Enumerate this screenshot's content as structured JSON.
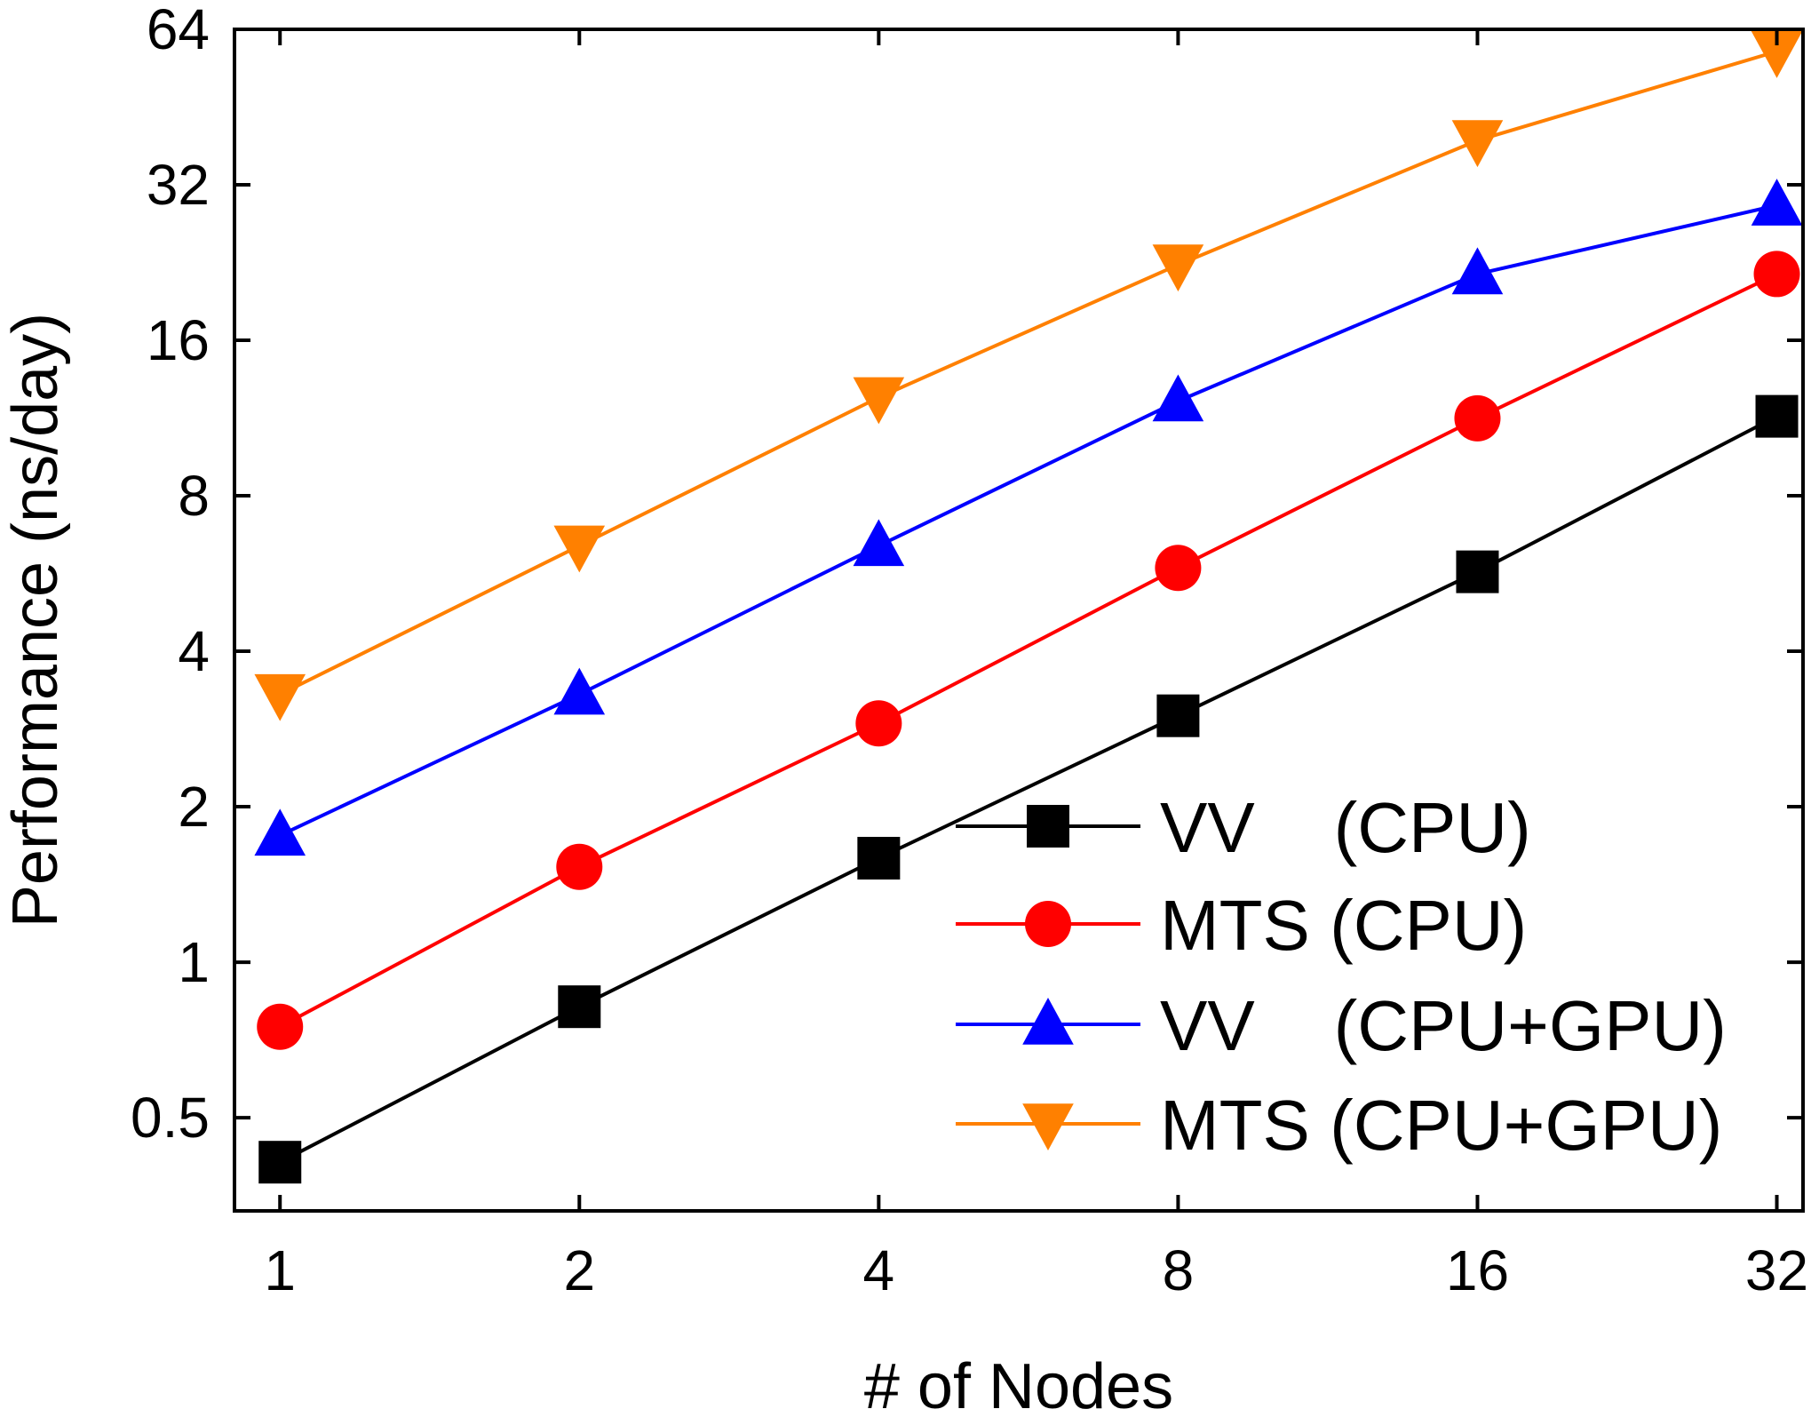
{
  "chart_data": {
    "type": "line",
    "xlabel": "# of Nodes",
    "ylabel": "Performance (ns/day)",
    "x_scale": "log2",
    "y_scale": "log2",
    "x": [
      1,
      2,
      4,
      8,
      16,
      32
    ],
    "x_tick_labels": [
      "1",
      "2",
      "4",
      "8",
      "16",
      "32"
    ],
    "y_ticks": [
      0.5,
      1,
      2,
      4,
      8,
      16,
      32,
      64
    ],
    "y_tick_labels": [
      "0.5",
      "1",
      "2",
      "4",
      "8",
      "16",
      "32",
      "64"
    ],
    "xlim": [
      0.9,
      34
    ],
    "ylim": [
      0.33,
      64
    ],
    "legend_position": "bottom-right",
    "grid": false,
    "series": [
      {
        "name": "VV    (CPU)",
        "color": "#000000",
        "marker": "square",
        "values": [
          0.41,
          0.82,
          1.59,
          3.0,
          5.7,
          11.4
        ]
      },
      {
        "name": "MTS (CPU)",
        "color": "#ff0000",
        "marker": "circle",
        "values": [
          0.75,
          1.53,
          2.9,
          5.8,
          11.3,
          21.5
        ]
      },
      {
        "name": "VV    (CPU+GPU)",
        "color": "#0000ff",
        "marker": "triangle-up",
        "values": [
          1.76,
          3.3,
          6.4,
          12.2,
          21.5,
          29.2
        ]
      },
      {
        "name": "MTS (CPU+GPU)",
        "color": "#ff8000",
        "marker": "triangle-down",
        "values": [
          3.3,
          6.4,
          12.4,
          22.4,
          39.0,
          58.0
        ]
      }
    ]
  }
}
